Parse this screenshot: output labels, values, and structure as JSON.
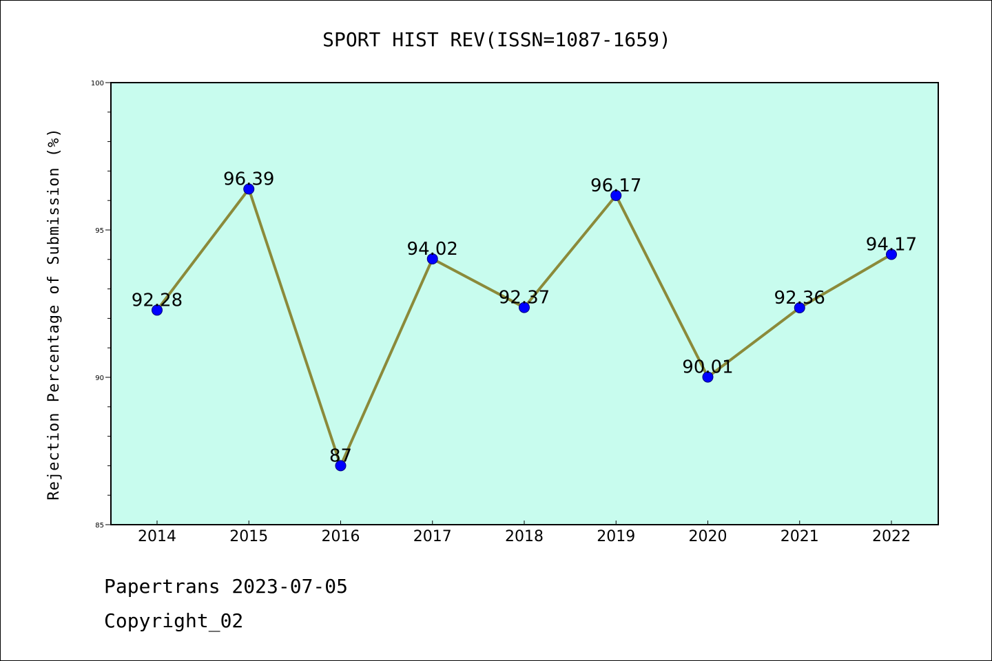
{
  "chart_data": {
    "type": "line",
    "title": "SPORT HIST REV(ISSN=1087-1659)",
    "xlabel": "",
    "ylabel": "Rejection Percentage of Submission (%)",
    "categories": [
      "2014",
      "2015",
      "2016",
      "2017",
      "2018",
      "2019",
      "2020",
      "2021",
      "2022"
    ],
    "values": [
      92.28,
      96.39,
      87,
      94.02,
      92.37,
      96.17,
      90.01,
      92.36,
      94.17
    ],
    "data_labels": [
      "92.28",
      "96.39",
      "87",
      "94.02",
      "92.37",
      "96.17",
      "90.01",
      "92.36",
      "94.17"
    ],
    "ylim": [
      85,
      100
    ],
    "yticks": [
      85,
      90,
      95,
      100
    ],
    "ytick_labels": [
      "85",
      "90",
      "95",
      "100"
    ],
    "grid": false,
    "colors": {
      "plot_background": "#c8fcee",
      "line": "#8b8a3a",
      "marker": "#0000ff"
    }
  },
  "footer": {
    "line1": "Papertrans 2023-07-05",
    "line2": "Copyright_02"
  }
}
